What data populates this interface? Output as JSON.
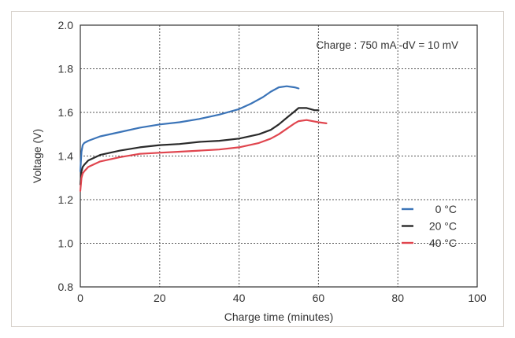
{
  "chart_data": {
    "type": "line",
    "annotation": "Charge : 750 mA -dV = 10 mV",
    "xlabel": "Charge time (minutes)",
    "ylabel": "Voltage (V)",
    "xlim": [
      0,
      100
    ],
    "ylim": [
      0.8,
      2.0
    ],
    "xticks": [
      0,
      20,
      40,
      60,
      80,
      100
    ],
    "xtick_labels": [
      "0",
      "20",
      "40",
      "60",
      "80",
      "100"
    ],
    "yticks": [
      0.8,
      1.0,
      1.2,
      1.4,
      1.6,
      1.8,
      2.0
    ],
    "ytick_labels": [
      "0.8",
      "1.0",
      "1.2",
      "1.4",
      "1.6",
      "1.8",
      "2.0"
    ],
    "grid": true,
    "legend_position": "bottom-right",
    "series": [
      {
        "name": "0 °C",
        "color": "#3b74b8",
        "x": [
          0,
          0.3,
          0.6,
          1,
          2,
          5,
          10,
          15,
          20,
          25,
          30,
          35,
          40,
          43,
          46,
          48,
          50,
          52,
          54,
          55
        ],
        "y": [
          1.33,
          1.42,
          1.45,
          1.46,
          1.47,
          1.49,
          1.51,
          1.53,
          1.545,
          1.555,
          1.57,
          1.59,
          1.615,
          1.64,
          1.67,
          1.695,
          1.715,
          1.72,
          1.715,
          1.71
        ]
      },
      {
        "name": "20 °C",
        "color": "#2a2a2a",
        "x": [
          0,
          0.3,
          0.6,
          1,
          2,
          5,
          10,
          15,
          20,
          25,
          30,
          35,
          40,
          45,
          48,
          50,
          52,
          54,
          55,
          57,
          59,
          60
        ],
        "y": [
          1.27,
          1.33,
          1.35,
          1.36,
          1.38,
          1.405,
          1.425,
          1.44,
          1.45,
          1.455,
          1.465,
          1.47,
          1.48,
          1.5,
          1.52,
          1.545,
          1.575,
          1.605,
          1.62,
          1.62,
          1.61,
          1.61
        ]
      },
      {
        "name": "40 °C",
        "color": "#e0454e",
        "x": [
          0,
          0.3,
          0.6,
          1,
          2,
          5,
          10,
          15,
          20,
          25,
          30,
          35,
          40,
          45,
          48,
          50,
          52,
          54,
          55,
          57,
          60,
          62
        ],
        "y": [
          1.24,
          1.3,
          1.32,
          1.33,
          1.35,
          1.375,
          1.395,
          1.41,
          1.415,
          1.42,
          1.425,
          1.43,
          1.44,
          1.46,
          1.48,
          1.5,
          1.525,
          1.55,
          1.56,
          1.565,
          1.555,
          1.55
        ]
      }
    ]
  }
}
